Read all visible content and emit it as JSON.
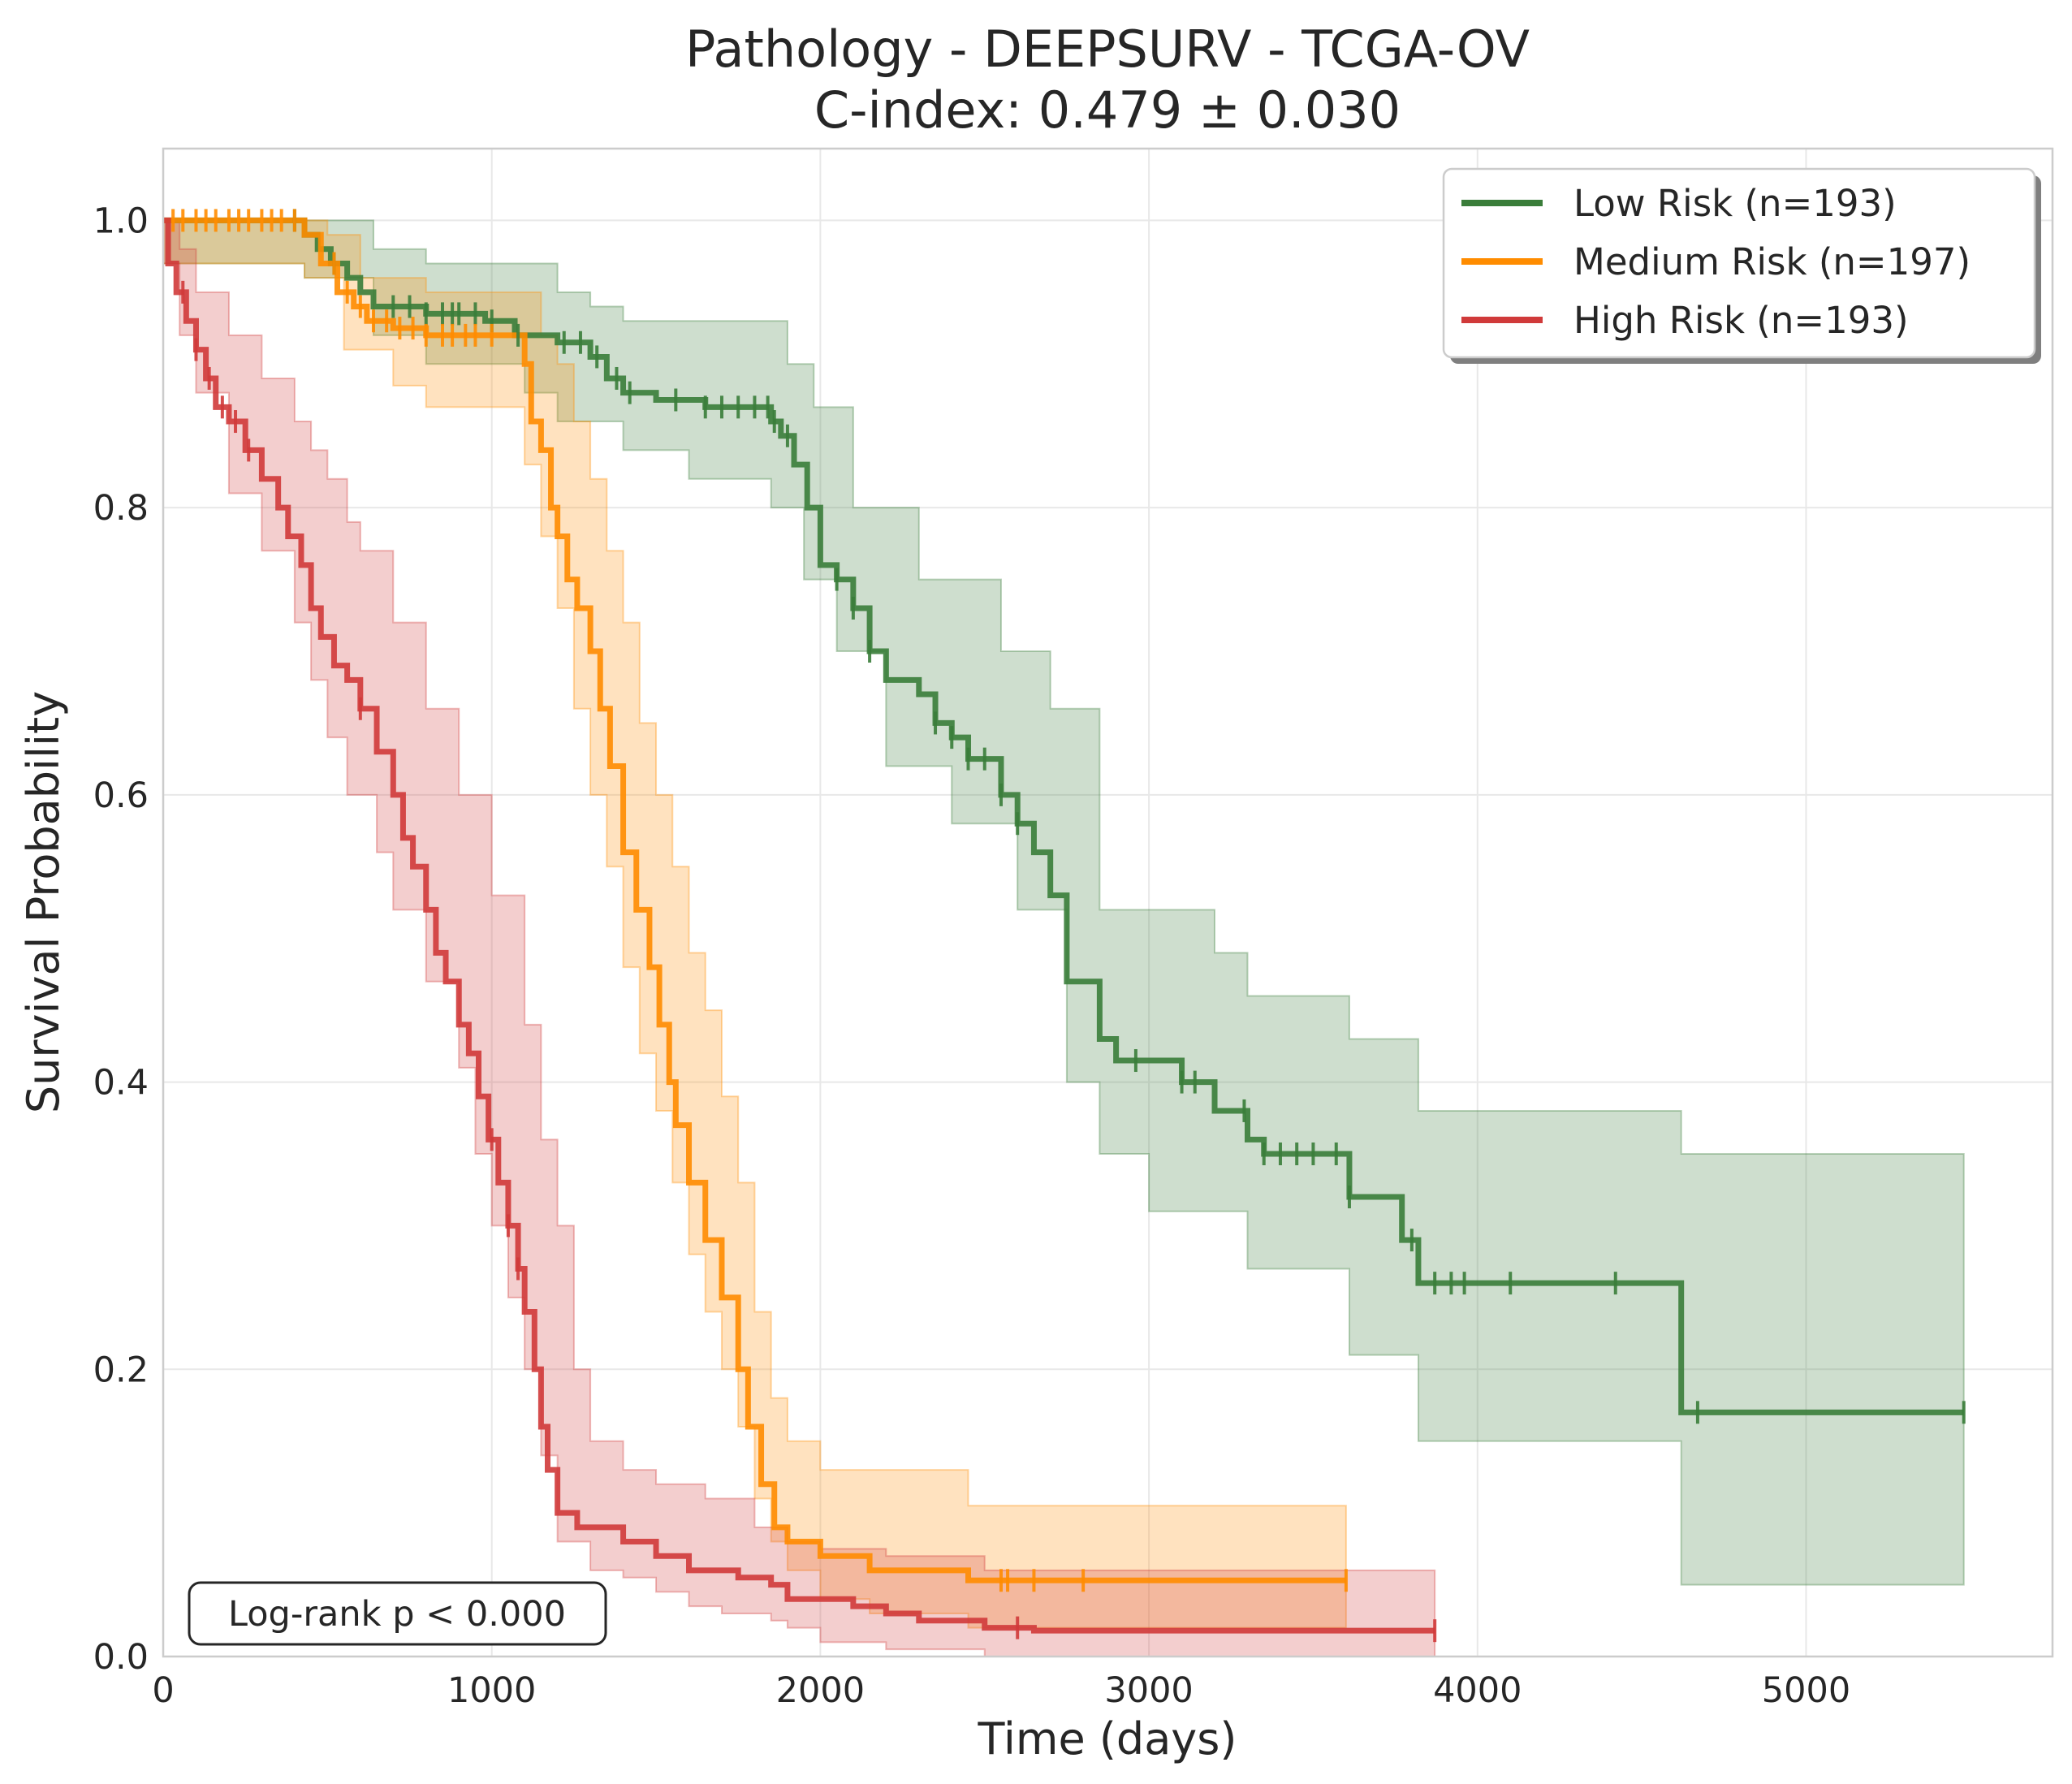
{
  "chart_data": {
    "type": "line",
    "subtype": "kaplan-meier",
    "title": "Pathology - DEEPSURV - TCGA-OV",
    "subtitle": "C-index: 0.479 ± 0.030",
    "xlabel": "Time (days)",
    "ylabel": "Survival Probability",
    "xlim": [
      0,
      5750
    ],
    "ylim": [
      0,
      1.05
    ],
    "xticks": [
      0,
      1000,
      2000,
      3000,
      4000,
      5000
    ],
    "xtick_labels": [
      "0",
      "1000",
      "2000",
      "3000",
      "4000",
      "5000"
    ],
    "yticks": [
      0,
      0.2,
      0.4,
      0.6,
      0.8,
      1.0
    ],
    "ytick_labels": [
      "0.0",
      "0.2",
      "0.4",
      "0.6",
      "0.8",
      "1.0"
    ],
    "grid": true,
    "legend_position": "top-right",
    "annotation": "Log-rank p < 0.000",
    "series": [
      {
        "name": "Low Risk (n=193)",
        "color": "#3a7d3a",
        "steps": [
          [
            0,
            1.0
          ],
          [
            430,
            0.99
          ],
          [
            470,
            0.98
          ],
          [
            510,
            0.97
          ],
          [
            560,
            0.96
          ],
          [
            600,
            0.95
          ],
          [
            640,
            0.94
          ],
          [
            800,
            0.935
          ],
          [
            980,
            0.93
          ],
          [
            1070,
            0.92
          ],
          [
            1200,
            0.915
          ],
          [
            1300,
            0.905
          ],
          [
            1350,
            0.89
          ],
          [
            1400,
            0.88
          ],
          [
            1500,
            0.875
          ],
          [
            1650,
            0.87
          ],
          [
            1850,
            0.86
          ],
          [
            1880,
            0.85
          ],
          [
            1920,
            0.83
          ],
          [
            1960,
            0.8
          ],
          [
            2000,
            0.76
          ],
          [
            2050,
            0.75
          ],
          [
            2100,
            0.73
          ],
          [
            2150,
            0.7
          ],
          [
            2200,
            0.68
          ],
          [
            2300,
            0.67
          ],
          [
            2350,
            0.65
          ],
          [
            2400,
            0.64
          ],
          [
            2450,
            0.625
          ],
          [
            2550,
            0.6
          ],
          [
            2600,
            0.58
          ],
          [
            2650,
            0.56
          ],
          [
            2700,
            0.53
          ],
          [
            2750,
            0.47
          ],
          [
            2850,
            0.43
          ],
          [
            2900,
            0.415
          ],
          [
            3100,
            0.4
          ],
          [
            3200,
            0.38
          ],
          [
            3300,
            0.36
          ],
          [
            3350,
            0.35
          ],
          [
            3610,
            0.32
          ],
          [
            3770,
            0.29
          ],
          [
            3820,
            0.26
          ],
          [
            4620,
            0.17
          ],
          [
            5480,
            0.17
          ]
        ],
        "ci_upper": [
          [
            0,
            1.0
          ],
          [
            430,
            1.0
          ],
          [
            640,
            0.98
          ],
          [
            800,
            0.97
          ],
          [
            1200,
            0.95
          ],
          [
            1300,
            0.94
          ],
          [
            1400,
            0.93
          ],
          [
            1900,
            0.9
          ],
          [
            1980,
            0.87
          ],
          [
            2100,
            0.8
          ],
          [
            2300,
            0.75
          ],
          [
            2550,
            0.7
          ],
          [
            2700,
            0.66
          ],
          [
            2850,
            0.52
          ],
          [
            3200,
            0.49
          ],
          [
            3300,
            0.46
          ],
          [
            3610,
            0.43
          ],
          [
            3820,
            0.38
          ],
          [
            4620,
            0.35
          ],
          [
            5480,
            0.35
          ]
        ],
        "ci_lower": [
          [
            0,
            0.97
          ],
          [
            430,
            0.96
          ],
          [
            640,
            0.92
          ],
          [
            800,
            0.9
          ],
          [
            1100,
            0.88
          ],
          [
            1200,
            0.86
          ],
          [
            1400,
            0.84
          ],
          [
            1600,
            0.82
          ],
          [
            1850,
            0.8
          ],
          [
            1950,
            0.75
          ],
          [
            2050,
            0.7
          ],
          [
            2200,
            0.62
          ],
          [
            2400,
            0.58
          ],
          [
            2600,
            0.52
          ],
          [
            2750,
            0.4
          ],
          [
            2850,
            0.35
          ],
          [
            3000,
            0.31
          ],
          [
            3300,
            0.27
          ],
          [
            3610,
            0.21
          ],
          [
            3820,
            0.15
          ],
          [
            4620,
            0.05
          ],
          [
            5480,
            0.05
          ]
        ],
        "censor_x": [
          400,
          520,
          700,
          750,
          800,
          850,
          880,
          900,
          950,
          1000,
          1080,
          1220,
          1270,
          1320,
          1380,
          1420,
          1560,
          1650,
          1700,
          1750,
          1800,
          1840,
          1860,
          1900,
          2050,
          2100,
          2150,
          2350,
          2400,
          2450,
          2500,
          2550,
          2600,
          2960,
          3100,
          3140,
          3290,
          3350,
          3400,
          3450,
          3500,
          3570,
          3610,
          3800,
          3870,
          3920,
          3960,
          4100,
          4420,
          4670,
          5480
        ]
      },
      {
        "name": "Medium Risk (n=197)",
        "color": "#ff8c00",
        "steps": [
          [
            0,
            1.0
          ],
          [
            430,
            0.99
          ],
          [
            480,
            0.97
          ],
          [
            530,
            0.95
          ],
          [
            580,
            0.94
          ],
          [
            620,
            0.93
          ],
          [
            700,
            0.925
          ],
          [
            800,
            0.92
          ],
          [
            1050,
            0.92
          ],
          [
            1100,
            0.9
          ],
          [
            1120,
            0.86
          ],
          [
            1150,
            0.84
          ],
          [
            1180,
            0.8
          ],
          [
            1200,
            0.78
          ],
          [
            1230,
            0.75
          ],
          [
            1260,
            0.73
          ],
          [
            1300,
            0.7
          ],
          [
            1330,
            0.66
          ],
          [
            1360,
            0.62
          ],
          [
            1400,
            0.56
          ],
          [
            1440,
            0.52
          ],
          [
            1480,
            0.48
          ],
          [
            1510,
            0.44
          ],
          [
            1540,
            0.4
          ],
          [
            1560,
            0.37
          ],
          [
            1600,
            0.33
          ],
          [
            1650,
            0.29
          ],
          [
            1700,
            0.25
          ],
          [
            1750,
            0.2
          ],
          [
            1780,
            0.16
          ],
          [
            1820,
            0.12
          ],
          [
            1860,
            0.09
          ],
          [
            1900,
            0.08
          ],
          [
            2000,
            0.07
          ],
          [
            2150,
            0.06
          ],
          [
            2450,
            0.053
          ],
          [
            3600,
            0.053
          ]
        ],
        "ci_upper": [
          [
            0,
            1.0
          ],
          [
            500,
            0.99
          ],
          [
            600,
            0.96
          ],
          [
            800,
            0.95
          ],
          [
            1050,
            0.95
          ],
          [
            1150,
            0.92
          ],
          [
            1200,
            0.9
          ],
          [
            1250,
            0.86
          ],
          [
            1300,
            0.82
          ],
          [
            1350,
            0.77
          ],
          [
            1400,
            0.72
          ],
          [
            1450,
            0.65
          ],
          [
            1500,
            0.6
          ],
          [
            1550,
            0.55
          ],
          [
            1600,
            0.49
          ],
          [
            1650,
            0.45
          ],
          [
            1700,
            0.39
          ],
          [
            1750,
            0.33
          ],
          [
            1800,
            0.24
          ],
          [
            1850,
            0.18
          ],
          [
            1900,
            0.15
          ],
          [
            2000,
            0.13
          ],
          [
            2450,
            0.105
          ],
          [
            3600,
            0.105
          ]
        ],
        "ci_lower": [
          [
            0,
            0.97
          ],
          [
            430,
            0.96
          ],
          [
            550,
            0.91
          ],
          [
            700,
            0.885
          ],
          [
            800,
            0.87
          ],
          [
            1050,
            0.87
          ],
          [
            1100,
            0.83
          ],
          [
            1150,
            0.78
          ],
          [
            1200,
            0.73
          ],
          [
            1250,
            0.66
          ],
          [
            1300,
            0.6
          ],
          [
            1350,
            0.55
          ],
          [
            1400,
            0.48
          ],
          [
            1450,
            0.42
          ],
          [
            1500,
            0.38
          ],
          [
            1550,
            0.33
          ],
          [
            1600,
            0.28
          ],
          [
            1650,
            0.24
          ],
          [
            1700,
            0.2
          ],
          [
            1750,
            0.16
          ],
          [
            1800,
            0.11
          ],
          [
            1850,
            0.08
          ],
          [
            1900,
            0.06
          ],
          [
            2000,
            0.04
          ],
          [
            2150,
            0.03
          ],
          [
            2450,
            0.02
          ],
          [
            3600,
            0.02
          ]
        ],
        "censor_x": [
          30,
          60,
          100,
          130,
          160,
          200,
          230,
          260,
          300,
          330,
          360,
          400,
          520,
          560,
          600,
          640,
          680,
          720,
          760,
          800,
          850,
          880,
          920,
          950,
          1000,
          2550,
          2570,
          2650,
          2800,
          3600
        ]
      },
      {
        "name": "High Risk (n=193)",
        "color": "#d03a3a",
        "steps": [
          [
            0,
            1.0
          ],
          [
            15,
            0.97
          ],
          [
            40,
            0.95
          ],
          [
            70,
            0.93
          ],
          [
            100,
            0.91
          ],
          [
            130,
            0.89
          ],
          [
            160,
            0.87
          ],
          [
            200,
            0.86
          ],
          [
            250,
            0.84
          ],
          [
            300,
            0.82
          ],
          [
            350,
            0.8
          ],
          [
            380,
            0.78
          ],
          [
            420,
            0.76
          ],
          [
            450,
            0.73
          ],
          [
            480,
            0.71
          ],
          [
            520,
            0.69
          ],
          [
            560,
            0.68
          ],
          [
            600,
            0.66
          ],
          [
            650,
            0.63
          ],
          [
            700,
            0.6
          ],
          [
            730,
            0.57
          ],
          [
            760,
            0.55
          ],
          [
            800,
            0.52
          ],
          [
            830,
            0.49
          ],
          [
            860,
            0.47
          ],
          [
            900,
            0.44
          ],
          [
            930,
            0.42
          ],
          [
            960,
            0.39
          ],
          [
            990,
            0.36
          ],
          [
            1020,
            0.33
          ],
          [
            1050,
            0.3
          ],
          [
            1080,
            0.27
          ],
          [
            1100,
            0.24
          ],
          [
            1130,
            0.2
          ],
          [
            1150,
            0.16
          ],
          [
            1170,
            0.13
          ],
          [
            1200,
            0.1
          ],
          [
            1260,
            0.09
          ],
          [
            1400,
            0.08
          ],
          [
            1500,
            0.07
          ],
          [
            1600,
            0.06
          ],
          [
            1750,
            0.055
          ],
          [
            1850,
            0.05
          ],
          [
            1900,
            0.04
          ],
          [
            2100,
            0.035
          ],
          [
            2200,
            0.03
          ],
          [
            2300,
            0.025
          ],
          [
            2500,
            0.02
          ],
          [
            2650,
            0.018
          ],
          [
            3870,
            0.018
          ]
        ],
        "ci_upper": [
          [
            0,
            1.0
          ],
          [
            50,
            0.98
          ],
          [
            100,
            0.95
          ],
          [
            200,
            0.92
          ],
          [
            300,
            0.89
          ],
          [
            400,
            0.86
          ],
          [
            450,
            0.84
          ],
          [
            500,
            0.82
          ],
          [
            560,
            0.79
          ],
          [
            600,
            0.77
          ],
          [
            700,
            0.72
          ],
          [
            800,
            0.66
          ],
          [
            900,
            0.6
          ],
          [
            1000,
            0.53
          ],
          [
            1100,
            0.44
          ],
          [
            1150,
            0.36
          ],
          [
            1200,
            0.3
          ],
          [
            1250,
            0.2
          ],
          [
            1300,
            0.15
          ],
          [
            1400,
            0.13
          ],
          [
            1500,
            0.12
          ],
          [
            1650,
            0.11
          ],
          [
            1800,
            0.09
          ],
          [
            1900,
            0.08
          ],
          [
            2000,
            0.075
          ],
          [
            2200,
            0.07
          ],
          [
            2500,
            0.06
          ],
          [
            3870,
            0.05
          ]
        ],
        "ci_lower": [
          [
            0,
            0.97
          ],
          [
            50,
            0.92
          ],
          [
            100,
            0.88
          ],
          [
            200,
            0.81
          ],
          [
            300,
            0.77
          ],
          [
            400,
            0.72
          ],
          [
            450,
            0.68
          ],
          [
            500,
            0.64
          ],
          [
            560,
            0.6
          ],
          [
            650,
            0.56
          ],
          [
            700,
            0.52
          ],
          [
            800,
            0.47
          ],
          [
            900,
            0.41
          ],
          [
            950,
            0.35
          ],
          [
            1000,
            0.3
          ],
          [
            1050,
            0.25
          ],
          [
            1100,
            0.2
          ],
          [
            1150,
            0.14
          ],
          [
            1200,
            0.08
          ],
          [
            1300,
            0.06
          ],
          [
            1400,
            0.055
          ],
          [
            1500,
            0.045
          ],
          [
            1600,
            0.035
          ],
          [
            1700,
            0.03
          ],
          [
            1850,
            0.025
          ],
          [
            1900,
            0.02
          ],
          [
            2000,
            0.01
          ],
          [
            2200,
            0.005
          ],
          [
            2500,
            0.0
          ],
          [
            3870,
            0.0
          ]
        ],
        "censor_x": [
          60,
          100,
          140,
          180,
          220,
          260,
          600,
          1000,
          1050,
          1080,
          2600,
          3870
        ]
      }
    ]
  }
}
